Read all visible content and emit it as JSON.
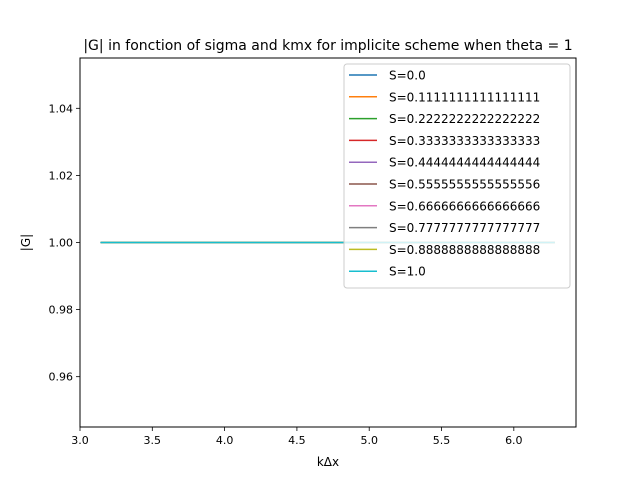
{
  "chart_data": {
    "type": "line",
    "title": "|G| in fonction of sigma and kmx for implicite scheme when theta = 1",
    "xlabel": "kΔx",
    "ylabel": "|G|",
    "xlim": [
      3.0,
      6.43
    ],
    "ylim": [
      0.945,
      1.055
    ],
    "x_ticks": [
      3.0,
      3.5,
      4.0,
      4.5,
      5.0,
      5.5,
      6.0
    ],
    "x_tick_labels": [
      "3.0",
      "3.5",
      "4.0",
      "4.5",
      "5.0",
      "5.5",
      "6.0"
    ],
    "y_ticks": [
      0.96,
      0.98,
      1.0,
      1.02,
      1.04
    ],
    "y_tick_labels": [
      "0.96",
      "0.98",
      "1.00",
      "1.02",
      "1.04"
    ],
    "x_range": [
      3.14159,
      6.28319
    ],
    "grid": false,
    "legend_position": "top-right",
    "series": [
      {
        "name": "S=0.0",
        "color": "#1f77b4",
        "y": 1.0
      },
      {
        "name": "S=0.1111111111111111",
        "color": "#ff7f0e",
        "y": 1.0
      },
      {
        "name": "S=0.2222222222222222",
        "color": "#2ca02c",
        "y": 1.0
      },
      {
        "name": "S=0.3333333333333333",
        "color": "#d62728",
        "y": 1.0
      },
      {
        "name": "S=0.4444444444444444",
        "color": "#9467bd",
        "y": 1.0
      },
      {
        "name": "S=0.5555555555555556",
        "color": "#8c564b",
        "y": 1.0
      },
      {
        "name": "S=0.6666666666666666",
        "color": "#e377c2",
        "y": 1.0
      },
      {
        "name": "S=0.7777777777777777",
        "color": "#7f7f7f",
        "y": 1.0
      },
      {
        "name": "S=0.8888888888888888",
        "color": "#bcbd22",
        "y": 1.0
      },
      {
        "name": "S=1.0",
        "color": "#17becf",
        "y": 1.0
      }
    ]
  }
}
